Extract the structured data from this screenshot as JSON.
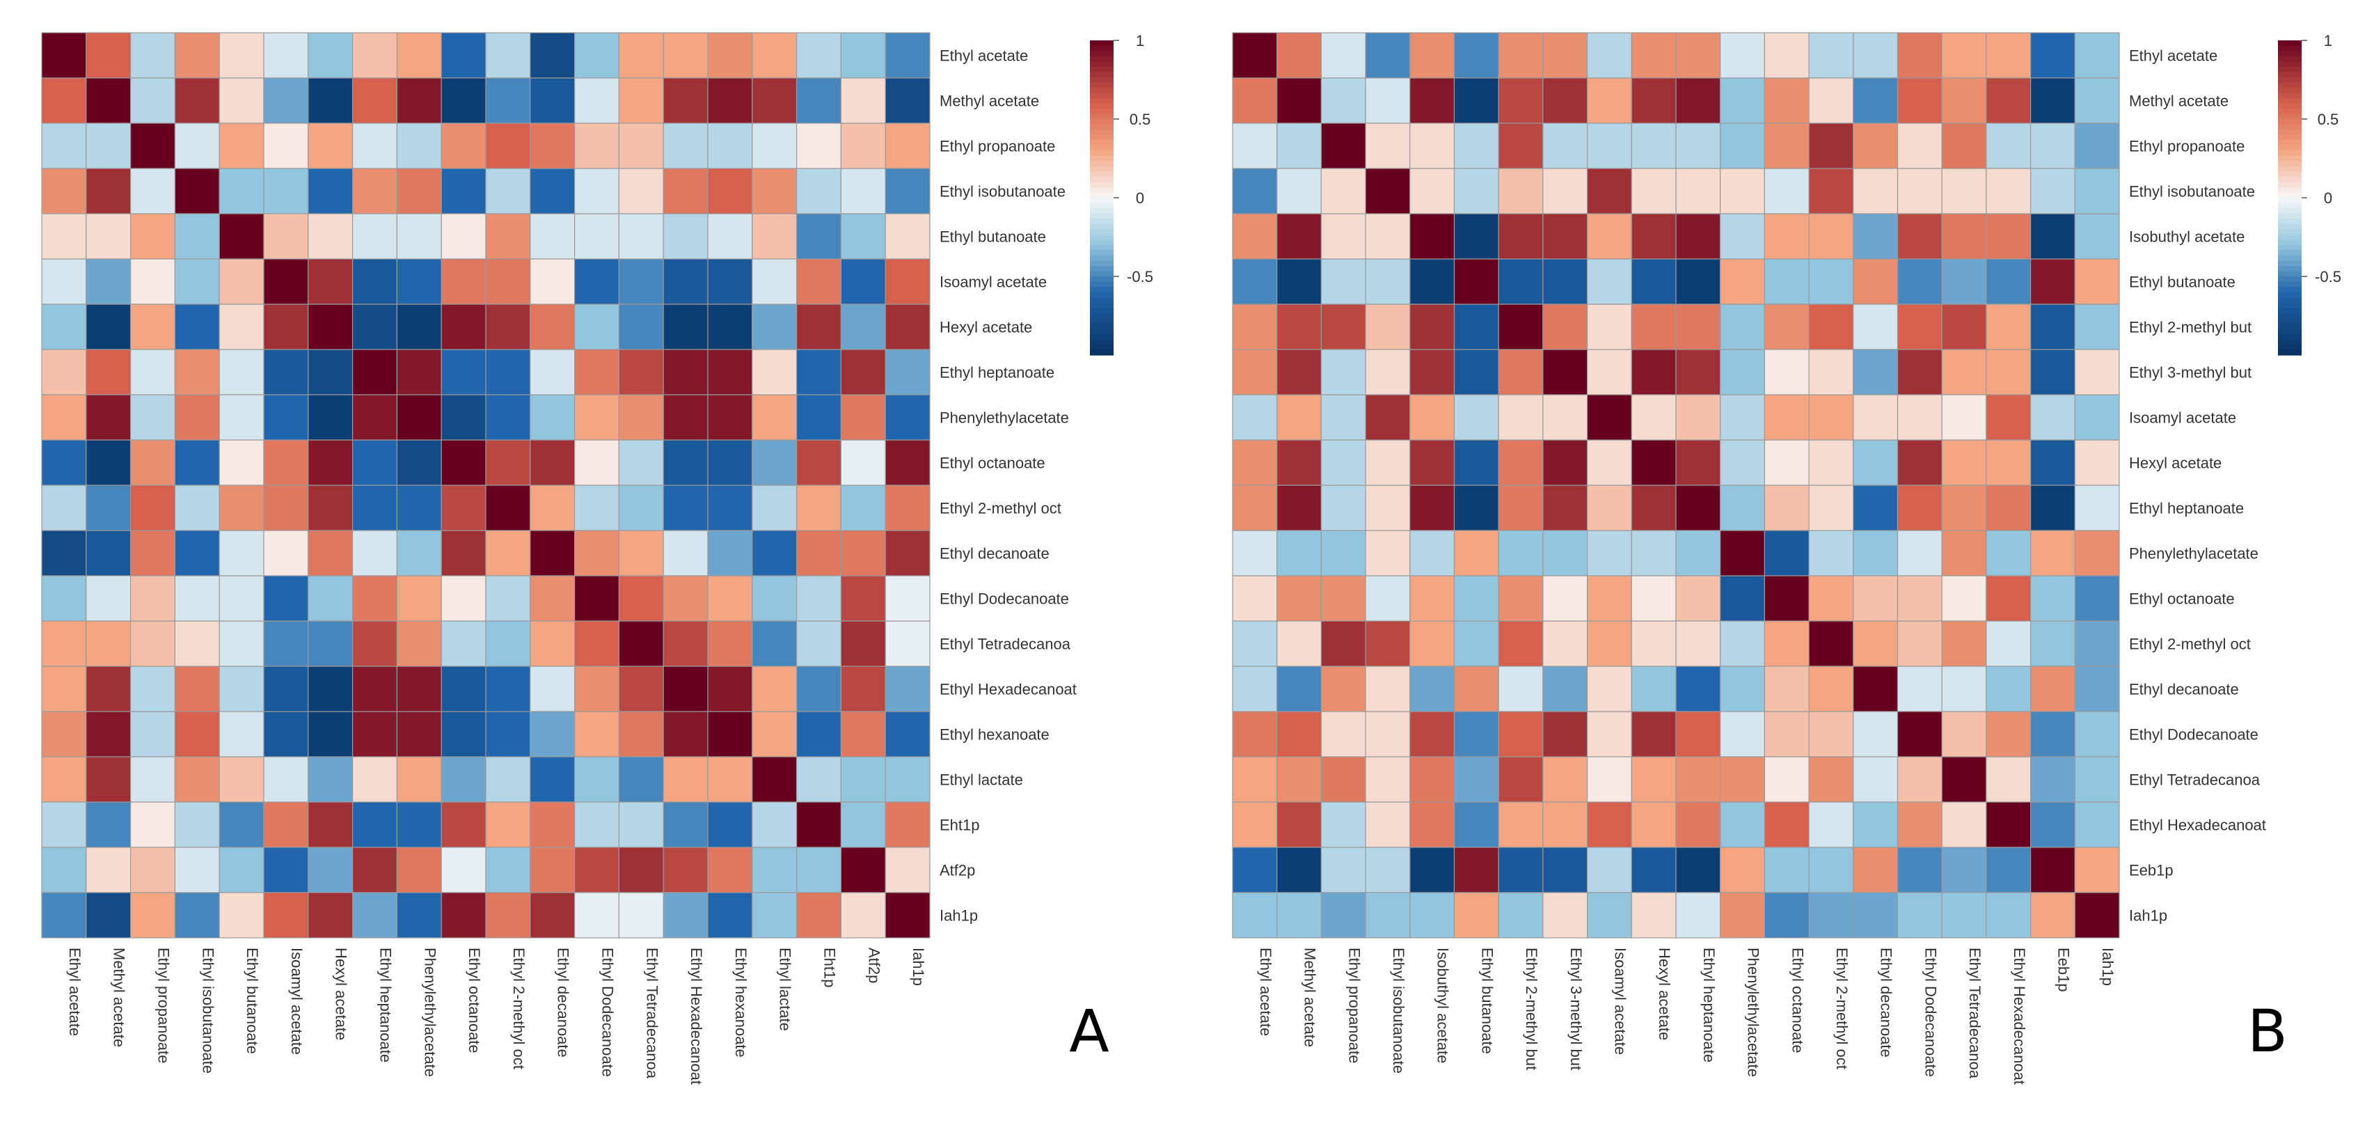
{
  "chart_data": [
    {
      "type": "heatmap",
      "panel_label": "A",
      "labels": [
        "Ethyl acetate",
        "Methyl acetate",
        "Ethyl propanoate",
        "Ethyl isobutanoate",
        "Ethyl butanoate",
        "Isoamyl acetate",
        "Hexyl acetate",
        "Ethyl heptanoate",
        "Phenylethylacetate",
        "Ethyl octanoate",
        "Ethyl 2-methyl oct",
        "Ethyl decanoate",
        "Ethyl Dodecanoate",
        "Ethyl Tetradecanoa",
        "Ethyl Hexadecanoat",
        "Ethyl hexanoate",
        "Ethyl lactate",
        "Eht1p",
        "Atf2p",
        "Iah1p"
      ],
      "values": [
        [
          1,
          0.6,
          -0.2,
          0.4,
          0.1,
          -0.1,
          -0.3,
          0.2,
          0.3,
          -0.6,
          -0.2,
          -0.8,
          -0.3,
          0.3,
          0.3,
          0.4,
          0.3,
          -0.2,
          -0.3,
          -0.5
        ],
        [
          0.6,
          1,
          -0.2,
          0.8,
          0.1,
          -0.4,
          -0.9,
          0.6,
          0.9,
          -0.9,
          -0.5,
          -0.7,
          -0.1,
          0.3,
          0.8,
          0.9,
          0.8,
          -0.5,
          0.1,
          -0.8
        ],
        [
          -0.2,
          -0.2,
          1,
          -0.1,
          0.3,
          0.05,
          0.3,
          -0.1,
          -0.2,
          0.4,
          0.6,
          0.5,
          0.2,
          0.2,
          -0.2,
          -0.2,
          -0.1,
          0.05,
          0.2,
          0.3
        ],
        [
          0.4,
          0.8,
          -0.1,
          1,
          -0.3,
          -0.3,
          -0.6,
          0.4,
          0.5,
          -0.6,
          -0.2,
          -0.6,
          -0.1,
          0.1,
          0.5,
          0.6,
          0.4,
          -0.2,
          -0.1,
          -0.5
        ],
        [
          0.1,
          0.1,
          0.3,
          -0.3,
          1,
          0.2,
          0.1,
          -0.1,
          -0.1,
          0.05,
          0.4,
          -0.1,
          -0.1,
          -0.1,
          -0.2,
          -0.1,
          0.2,
          -0.5,
          -0.3,
          0.1
        ],
        [
          -0.1,
          -0.4,
          0.05,
          -0.3,
          0.2,
          1,
          0.8,
          -0.7,
          -0.6,
          0.5,
          0.5,
          0.05,
          -0.6,
          -0.5,
          -0.7,
          -0.7,
          -0.1,
          0.5,
          -0.6,
          0.6
        ],
        [
          -0.3,
          -0.9,
          0.3,
          -0.6,
          0.1,
          0.8,
          1,
          -0.8,
          -0.9,
          0.9,
          0.8,
          0.5,
          -0.3,
          -0.5,
          -0.9,
          -0.9,
          -0.4,
          0.8,
          -0.4,
          0.8
        ],
        [
          0.2,
          0.6,
          -0.1,
          0.4,
          -0.1,
          -0.7,
          -0.8,
          1,
          0.9,
          -0.6,
          -0.6,
          -0.1,
          0.5,
          0.7,
          0.9,
          0.9,
          0.1,
          -0.6,
          0.8,
          -0.4
        ],
        [
          0.3,
          0.9,
          -0.2,
          0.5,
          -0.1,
          -0.6,
          -0.9,
          0.9,
          1,
          -0.8,
          -0.6,
          -0.3,
          0.3,
          0.4,
          0.9,
          0.9,
          0.3,
          -0.6,
          0.5,
          -0.6
        ],
        [
          -0.6,
          -0.9,
          0.4,
          -0.6,
          0.05,
          0.5,
          0.9,
          -0.6,
          -0.8,
          1,
          0.7,
          0.8,
          0.05,
          -0.2,
          -0.7,
          -0.7,
          -0.4,
          0.7,
          -0.05,
          0.9
        ],
        [
          -0.2,
          -0.5,
          0.6,
          -0.2,
          0.4,
          0.5,
          0.8,
          -0.6,
          -0.6,
          0.7,
          1,
          0.3,
          -0.2,
          -0.3,
          -0.6,
          -0.6,
          -0.2,
          0.3,
          -0.3,
          0.5
        ],
        [
          -0.8,
          -0.7,
          0.5,
          -0.6,
          -0.1,
          0.05,
          0.5,
          -0.1,
          -0.3,
          0.8,
          0.3,
          1,
          0.4,
          0.3,
          -0.1,
          -0.4,
          -0.6,
          0.5,
          0.5,
          0.8
        ],
        [
          -0.3,
          -0.1,
          0.2,
          -0.1,
          -0.1,
          -0.6,
          -0.3,
          0.5,
          0.3,
          0.05,
          -0.2,
          0.4,
          1,
          0.6,
          0.4,
          0.3,
          -0.3,
          -0.2,
          0.7,
          -0.05
        ],
        [
          0.3,
          0.3,
          0.2,
          0.1,
          -0.1,
          -0.5,
          -0.5,
          0.7,
          0.4,
          -0.2,
          -0.3,
          0.3,
          0.6,
          1,
          0.7,
          0.5,
          -0.5,
          -0.2,
          0.8,
          -0.05
        ],
        [
          0.3,
          0.8,
          -0.2,
          0.5,
          -0.2,
          -0.7,
          -0.9,
          0.9,
          0.9,
          -0.7,
          -0.6,
          -0.1,
          0.4,
          0.7,
          1,
          0.9,
          0.3,
          -0.5,
          0.7,
          -0.4
        ],
        [
          0.4,
          0.9,
          -0.2,
          0.6,
          -0.1,
          -0.7,
          -0.9,
          0.9,
          0.9,
          -0.7,
          -0.6,
          -0.4,
          0.3,
          0.5,
          0.9,
          1,
          0.3,
          -0.6,
          0.5,
          -0.6
        ],
        [
          0.3,
          0.8,
          -0.1,
          0.4,
          0.2,
          -0.1,
          -0.4,
          0.1,
          0.3,
          -0.4,
          -0.2,
          -0.6,
          -0.3,
          -0.5,
          0.3,
          0.3,
          1,
          -0.2,
          -0.3,
          -0.3
        ],
        [
          -0.2,
          -0.5,
          0.05,
          -0.2,
          -0.5,
          0.5,
          0.8,
          -0.6,
          -0.6,
          0.7,
          0.3,
          0.5,
          -0.2,
          -0.2,
          -0.5,
          -0.6,
          -0.2,
          1,
          -0.3,
          0.5
        ],
        [
          -0.3,
          0.1,
          0.2,
          -0.1,
          -0.3,
          -0.6,
          -0.4,
          0.8,
          0.5,
          -0.05,
          -0.3,
          0.5,
          0.7,
          0.8,
          0.7,
          0.5,
          -0.3,
          -0.3,
          1,
          0.1
        ],
        [
          -0.5,
          -0.8,
          0.3,
          -0.5,
          0.1,
          0.6,
          0.8,
          -0.4,
          -0.6,
          0.9,
          0.5,
          0.8,
          -0.05,
          -0.05,
          -0.4,
          -0.6,
          -0.3,
          0.5,
          0.1,
          1
        ]
      ],
      "colorbar": {
        "min": -1,
        "max": 1,
        "ticks": [
          "1",
          "0.5",
          "0",
          "-0.5"
        ]
      }
    },
    {
      "type": "heatmap",
      "panel_label": "B",
      "labels": [
        "Ethyl acetate",
        "Methyl acetate",
        "Ethyl propanoate",
        "Ethyl isobutanoate",
        "Isobuthyl acetate",
        "Ethyl butanoate",
        "Ethyl 2-methyl but",
        "Ethyl 3-methyl but",
        "Isoamyl acetate",
        "Hexyl acetate",
        "Ethyl heptanoate",
        "Phenylethylacetate",
        "Ethyl octanoate",
        "Ethyl 2-methyl oct",
        "Ethyl decanoate",
        "Ethyl Dodecanoate",
        "Ethyl Tetradecanoa",
        "Ethyl Hexadecanoat",
        "Eeb1p",
        "Iah1p"
      ],
      "values": [
        [
          1,
          0.5,
          -0.1,
          -0.5,
          0.4,
          -0.5,
          0.4,
          0.4,
          -0.2,
          0.4,
          0.4,
          -0.1,
          0.1,
          -0.2,
          -0.2,
          0.5,
          0.3,
          0.3,
          -0.6,
          -0.3
        ],
        [
          0.5,
          1,
          -0.2,
          -0.1,
          0.9,
          -0.9,
          0.7,
          0.8,
          0.3,
          0.8,
          0.9,
          -0.3,
          0.4,
          0.1,
          -0.5,
          0.6,
          0.4,
          0.7,
          -0.9,
          -0.3
        ],
        [
          -0.1,
          -0.2,
          1,
          0.1,
          0.1,
          -0.2,
          0.7,
          -0.2,
          -0.2,
          -0.2,
          -0.2,
          -0.3,
          0.4,
          0.8,
          0.4,
          0.1,
          0.5,
          -0.2,
          -0.2,
          -0.4
        ],
        [
          -0.5,
          -0.1,
          0.1,
          1,
          0.1,
          -0.2,
          0.2,
          0.1,
          0.8,
          0.1,
          0.1,
          0.1,
          -0.1,
          0.7,
          0.1,
          0.1,
          0.1,
          0.1,
          -0.2,
          -0.3
        ],
        [
          0.4,
          0.9,
          0.1,
          0.1,
          1,
          -0.9,
          0.8,
          0.8,
          0.3,
          0.8,
          0.9,
          -0.2,
          0.3,
          0.3,
          -0.4,
          0.7,
          0.5,
          0.5,
          -0.9,
          -0.3
        ],
        [
          -0.5,
          -0.9,
          -0.2,
          -0.2,
          -0.9,
          1,
          -0.7,
          -0.7,
          -0.2,
          -0.7,
          -0.9,
          0.3,
          -0.3,
          -0.3,
          0.4,
          -0.5,
          -0.4,
          -0.5,
          0.9,
          0.3
        ],
        [
          0.4,
          0.7,
          0.7,
          0.2,
          0.8,
          -0.7,
          1,
          0.5,
          0.1,
          0.5,
          0.5,
          -0.3,
          0.4,
          0.6,
          -0.1,
          0.6,
          0.7,
          0.3,
          -0.7,
          -0.3
        ],
        [
          0.4,
          0.8,
          -0.2,
          0.1,
          0.8,
          -0.7,
          0.5,
          1,
          0.1,
          0.9,
          0.8,
          -0.3,
          0.05,
          0.1,
          -0.4,
          0.8,
          0.3,
          0.3,
          -0.7,
          0.1
        ],
        [
          -0.2,
          0.3,
          -0.2,
          0.8,
          0.3,
          -0.2,
          0.1,
          0.1,
          1,
          0.1,
          0.2,
          -0.2,
          0.3,
          0.3,
          0.1,
          0.1,
          0.05,
          0.6,
          -0.2,
          -0.3
        ],
        [
          0.4,
          0.8,
          -0.2,
          0.1,
          0.8,
          -0.7,
          0.5,
          0.9,
          0.1,
          1,
          0.8,
          -0.2,
          0.05,
          0.1,
          -0.3,
          0.8,
          0.3,
          0.3,
          -0.7,
          0.1
        ],
        [
          0.4,
          0.9,
          -0.2,
          0.1,
          0.9,
          -0.9,
          0.5,
          0.8,
          0.2,
          0.8,
          1,
          -0.3,
          0.2,
          0.1,
          -0.6,
          0.6,
          0.4,
          0.5,
          -0.9,
          -0.1
        ],
        [
          -0.1,
          -0.3,
          -0.3,
          0.1,
          -0.2,
          0.3,
          -0.3,
          -0.3,
          -0.2,
          -0.2,
          -0.3,
          1,
          -0.7,
          -0.2,
          -0.3,
          -0.1,
          0.4,
          -0.3,
          0.3,
          0.4
        ],
        [
          0.1,
          0.4,
          0.4,
          -0.1,
          0.3,
          -0.3,
          0.4,
          0.05,
          0.3,
          0.05,
          0.2,
          -0.7,
          1,
          0.3,
          0.2,
          0.2,
          0.05,
          0.6,
          -0.3,
          -0.5
        ],
        [
          -0.2,
          0.1,
          0.8,
          0.7,
          0.3,
          -0.3,
          0.6,
          0.1,
          0.3,
          0.1,
          0.1,
          -0.2,
          0.3,
          1,
          0.3,
          0.2,
          0.4,
          -0.1,
          -0.3,
          -0.4
        ],
        [
          -0.2,
          -0.5,
          0.4,
          0.1,
          -0.4,
          0.4,
          -0.1,
          -0.4,
          0.1,
          -0.3,
          -0.6,
          -0.3,
          0.2,
          0.3,
          1,
          -0.1,
          -0.1,
          -0.3,
          0.4,
          -0.4
        ],
        [
          0.5,
          0.6,
          0.1,
          0.1,
          0.7,
          -0.5,
          0.6,
          0.8,
          0.1,
          0.8,
          0.6,
          -0.1,
          0.2,
          0.2,
          -0.1,
          1,
          0.2,
          0.4,
          -0.5,
          -0.3
        ],
        [
          0.3,
          0.4,
          0.5,
          0.1,
          0.5,
          -0.4,
          0.7,
          0.3,
          0.05,
          0.3,
          0.4,
          0.4,
          0.05,
          0.4,
          -0.1,
          0.2,
          1,
          0.1,
          -0.4,
          -0.3
        ],
        [
          0.3,
          0.7,
          -0.2,
          0.1,
          0.5,
          -0.5,
          0.3,
          0.3,
          0.6,
          0.3,
          0.5,
          -0.3,
          0.6,
          -0.1,
          -0.3,
          0.4,
          0.1,
          1,
          -0.5,
          -0.3
        ],
        [
          -0.6,
          -0.9,
          -0.2,
          -0.2,
          -0.9,
          0.9,
          -0.7,
          -0.7,
          -0.2,
          -0.7,
          -0.9,
          0.3,
          -0.3,
          -0.3,
          0.4,
          -0.5,
          -0.4,
          -0.5,
          1,
          0.3
        ],
        [
          -0.3,
          -0.3,
          -0.4,
          -0.3,
          -0.3,
          0.3,
          -0.3,
          0.1,
          -0.3,
          0.1,
          -0.1,
          0.4,
          -0.5,
          -0.4,
          -0.4,
          -0.3,
          -0.3,
          -0.3,
          0.3,
          1
        ]
      ],
      "colorbar": {
        "min": -1,
        "max": 1,
        "ticks": [
          "1",
          "0.5",
          "0",
          "-0.5"
        ]
      }
    }
  ]
}
